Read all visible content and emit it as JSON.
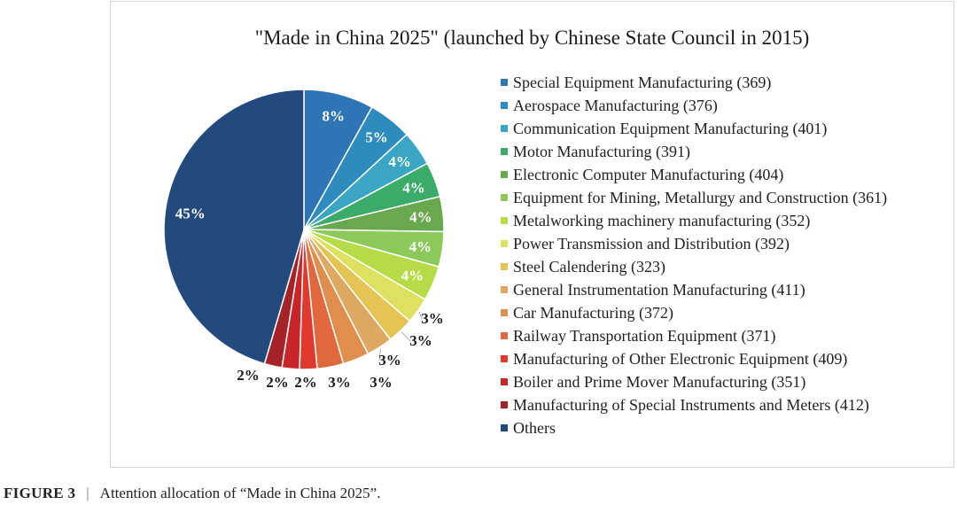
{
  "chart_data": {
    "type": "pie",
    "title": "\"Made in China 2025\" (launched by Chinese State Council in 2015)",
    "legend_position": "right",
    "slices": [
      {
        "label": "Special Equipment Manufacturing (369)",
        "value": 8,
        "value_label": "8%",
        "color": "#2e75b6"
      },
      {
        "label": "Aerospace Manufacturing (376)",
        "value": 5,
        "value_label": "5%",
        "color": "#2e8bbd"
      },
      {
        "label": "Communication Equipment Manufacturing (401)",
        "value": 4,
        "value_label": "4%",
        "color": "#3aa6c4"
      },
      {
        "label": "Motor Manufacturing (391)",
        "value": 4,
        "value_label": "4%",
        "color": "#3bab6a"
      },
      {
        "label": "Electronic Computer Manufacturing (404)",
        "value": 4,
        "value_label": "4%",
        "color": "#6aa84f"
      },
      {
        "label": "Equipment for Mining, Metallurgy and Construction (361)",
        "value": 4,
        "value_label": "4%",
        "color": "#8cc85a"
      },
      {
        "label": "Metalworking machinery manufacturing (352)",
        "value": 4,
        "value_label": "4%",
        "color": "#b5dc46"
      },
      {
        "label": "Power Transmission and Distribution (392)",
        "value": 3,
        "value_label": "3%",
        "color": "#dde160"
      },
      {
        "label": "Steel Calendering (323)",
        "value": 3,
        "value_label": "3%",
        "color": "#e4c455"
      },
      {
        "label": "General Instrumentation Manufacturing (411)",
        "value": 3,
        "value_label": "3%",
        "color": "#dda862"
      },
      {
        "label": "Car Manufacturing (372)",
        "value": 3,
        "value_label": "3%",
        "color": "#e08e4d"
      },
      {
        "label": "Railway Transportation Equipment (371)",
        "value": 3,
        "value_label": "3%",
        "color": "#e0683c"
      },
      {
        "label": "Manufacturing of Other Electronic Equipment (409)",
        "value": 2,
        "value_label": "2%",
        "color": "#e03a2e"
      },
      {
        "label": "Boiler and Prime Mover Manufacturing (351)",
        "value": 2,
        "value_label": "2%",
        "color": "#c8262a"
      },
      {
        "label": "Manufacturing of Special Instruments and Meters (412)",
        "value": 2,
        "value_label": "2%",
        "color": "#a52327"
      },
      {
        "label": "Others",
        "value": 45,
        "value_label": "45%",
        "color": "#234a7c"
      }
    ]
  },
  "caption": {
    "figure_label": "FIGURE 3",
    "separator": "|",
    "text": "Attention allocation of “Made in China 2025”."
  }
}
